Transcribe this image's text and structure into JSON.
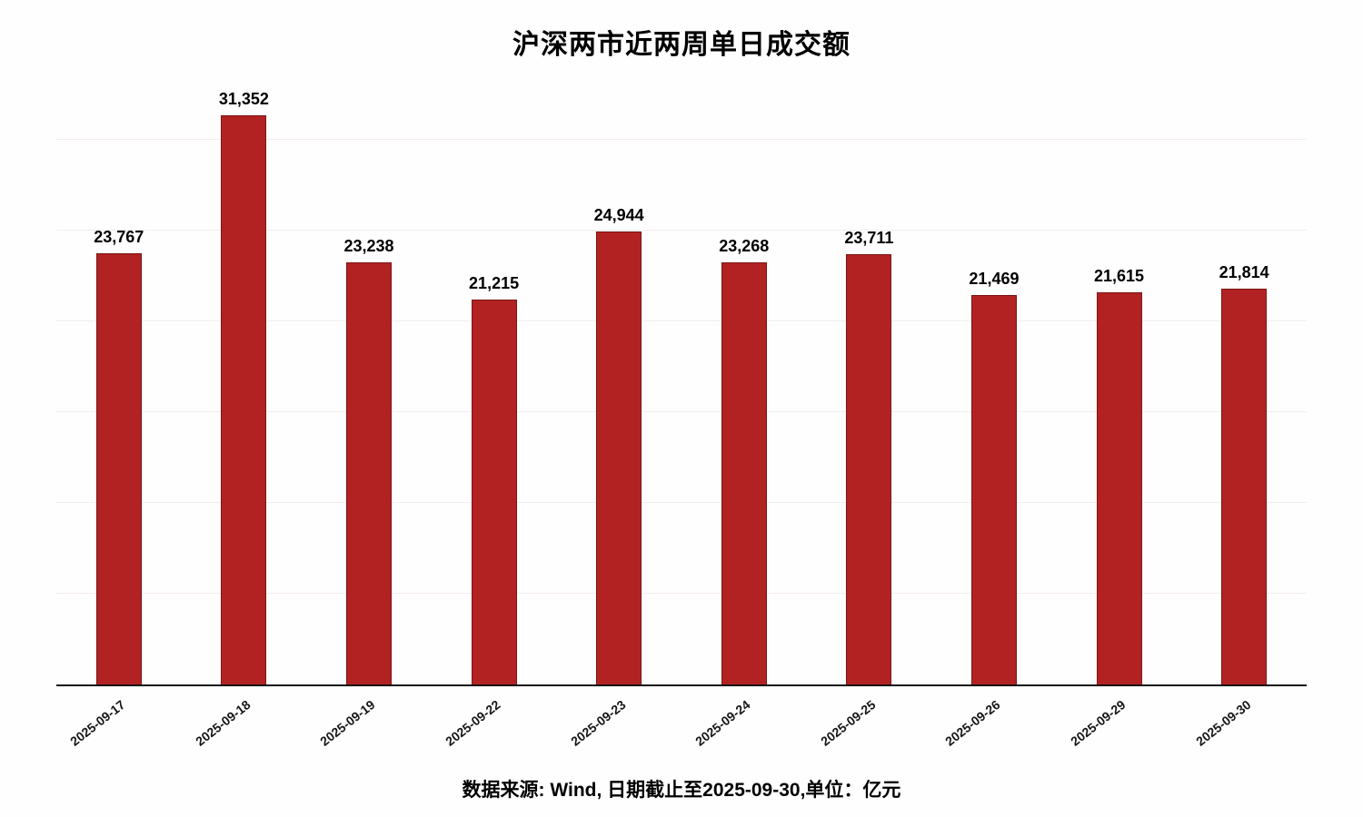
{
  "chart_data": {
    "type": "bar",
    "title": "沪深两市近两周单日成交额",
    "categories": [
      "2025-09-17",
      "2025-09-18",
      "2025-09-19",
      "2025-09-22",
      "2025-09-23",
      "2025-09-24",
      "2025-09-25",
      "2025-09-26",
      "2025-09-29",
      "2025-09-30"
    ],
    "values": [
      23767,
      31352,
      23238,
      21215,
      24944,
      23268,
      23711,
      21469,
      21615,
      21814
    ],
    "value_labels": [
      "23,767",
      "31,352",
      "23,238",
      "21,215",
      "24,944",
      "23,268",
      "23,711",
      "21,469",
      "21,615",
      "21,814"
    ],
    "source_note": "数据来源: Wind, 日期截止至2025-09-30,单位：亿元",
    "xlabel": "",
    "ylabel": "",
    "ylim": [
      0,
      33000
    ],
    "grid": "horizontal, step 5000, faint",
    "legend": "none",
    "bar_color": "#b22222",
    "bar_edge_color": "#7a1515",
    "background_color": "#fffefe"
  }
}
